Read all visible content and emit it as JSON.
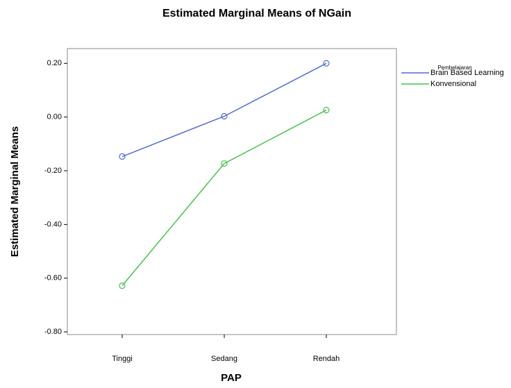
{
  "chart_data": {
    "type": "line",
    "title": "Estimated Marginal Means of NGain",
    "x_label": "PAP",
    "y_label": "Estimated Marginal Means",
    "categories": [
      "Tinggi",
      "Sedang",
      "Rendah"
    ],
    "series": [
      {
        "name": "Brain Based Learning",
        "color": "#4f6bd0",
        "values": [
          -0.147,
          0.003,
          0.2
        ]
      },
      {
        "name": "Konvensional",
        "color": "#44c24a",
        "values": [
          -0.628,
          -0.173,
          0.026
        ]
      }
    ],
    "legend_title": "Pembelajaran",
    "ylim": [
      -0.81,
      0.255
    ],
    "yticks": [
      {
        "value": -0.8,
        "label": "-0.80"
      },
      {
        "value": -0.6,
        "label": "-0.60"
      },
      {
        "value": -0.4,
        "label": "-0.40"
      },
      {
        "value": -0.2,
        "label": "-0.20"
      },
      {
        "value": 0,
        "label": "0.00"
      },
      {
        "value": 0.2,
        "label": "0.20"
      }
    ],
    "legend_position": "right"
  }
}
